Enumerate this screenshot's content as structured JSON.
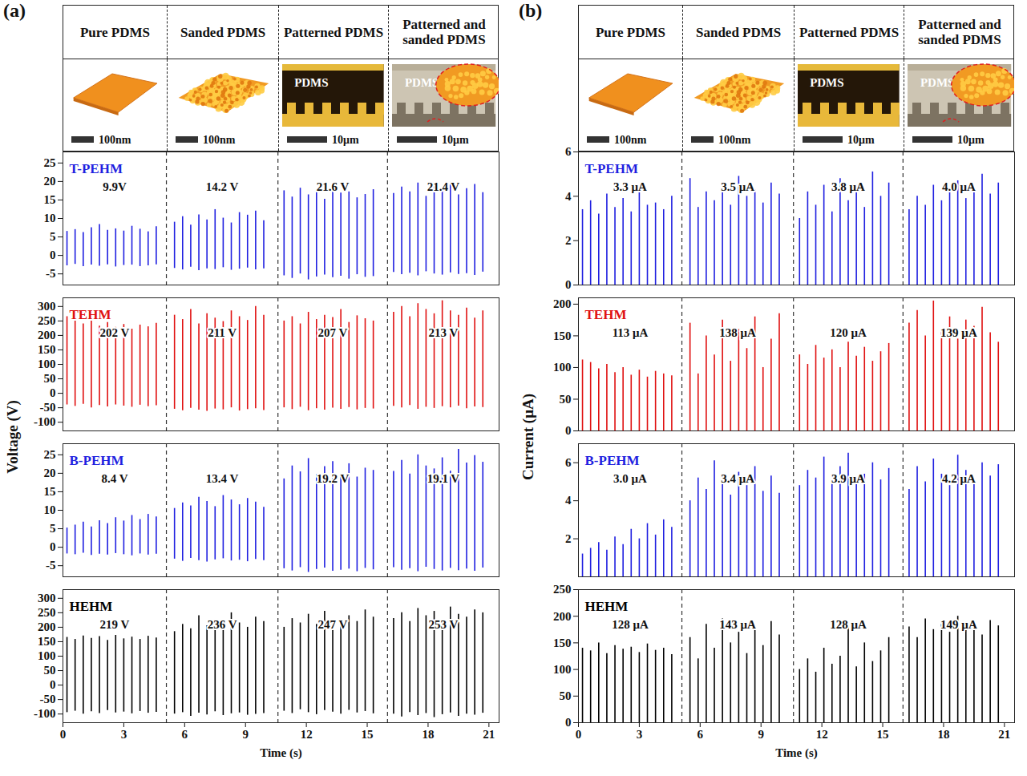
{
  "chart_data": [
    {
      "type": "spikes",
      "panel": "(a)",
      "columns": [
        "Pure PDMS",
        "Sanded PDMS",
        "Patterned PDMS",
        "Patterned and sanded PDMS"
      ],
      "insets": [
        {
          "type": "afm_flat",
          "scale": "100nm"
        },
        {
          "type": "afm_rough",
          "scale": "100nm"
        },
        {
          "type": "sem",
          "label": "PDMS",
          "scale": "10μm"
        },
        {
          "type": "sem_rough",
          "label": "PDMS",
          "scale": "10μm"
        }
      ],
      "ylabel": "Voltage (V)",
      "xlabel": "Time (s)",
      "xlim": [
        0,
        21.5
      ],
      "xticks": [
        0,
        3,
        6,
        9,
        12,
        15,
        18,
        21
      ],
      "dividers": [
        5.1,
        10.6,
        16.0
      ],
      "x": [
        0.2,
        0.6,
        1.0,
        1.4,
        1.8,
        2.2,
        2.6,
        3.0,
        3.4,
        3.8,
        4.2,
        4.6,
        5.5,
        5.9,
        6.3,
        6.7,
        7.1,
        7.5,
        7.9,
        8.3,
        8.7,
        9.1,
        9.5,
        9.9,
        10.9,
        11.3,
        11.7,
        12.1,
        12.5,
        12.9,
        13.3,
        13.7,
        14.1,
        14.5,
        14.9,
        15.3,
        16.3,
        16.7,
        17.1,
        17.5,
        17.9,
        18.3,
        18.7,
        19.1,
        19.5,
        19.9,
        20.3,
        20.7
      ],
      "rows": [
        {
          "name": "T-PEHM",
          "color": "#1f1fe0",
          "ylim": [
            -8,
            28
          ],
          "yticks": [
            -5,
            0,
            5,
            10,
            15,
            20,
            25
          ],
          "values": [
            6.5,
            7.0,
            6.2,
            7.5,
            8.4,
            6.8,
            7.2,
            6.6,
            7.9,
            7.1,
            6.4,
            7.8,
            9.0,
            10.5,
            8.2,
            11.0,
            9.6,
            12.4,
            10.1,
            8.8,
            11.6,
            10.9,
            12.0,
            9.4,
            17.5,
            15.8,
            18.2,
            16.4,
            17.9,
            15.2,
            18.6,
            16.9,
            17.2,
            15.6,
            16.5,
            17.8,
            16.8,
            18.5,
            17.2,
            19.6,
            16.0,
            18.9,
            17.5,
            19.8,
            16.4,
            18.1,
            19.2,
            17.0
          ],
          "lows": [
            -2.8,
            -2.4,
            -3.0,
            -2.6,
            -2.9,
            -2.5,
            -3.1,
            -2.7,
            -2.6,
            -3.0,
            -2.8,
            -2.5,
            -3.5,
            -3.9,
            -3.2,
            -4.1,
            -3.6,
            -3.8,
            -3.3,
            -4.0,
            -3.7,
            -3.4,
            -3.9,
            -3.6,
            -5.5,
            -6.2,
            -5.0,
            -6.6,
            -5.8,
            -5.3,
            -6.0,
            -5.6,
            -6.4,
            -5.2,
            -5.9,
            -5.7,
            -4.6,
            -5.2,
            -4.8,
            -5.5,
            -4.4,
            -5.0,
            -5.3,
            -4.7,
            -5.1,
            -4.9,
            -5.4,
            -4.5
          ],
          "annotations": [
            "9.9V",
            "14.2 V",
            "21.6 V",
            "21.4 V"
          ]
        },
        {
          "name": "TEHM",
          "color": "#e01010",
          "ylim": [
            -130,
            330
          ],
          "yticks": [
            -100,
            -50,
            0,
            50,
            100,
            150,
            200,
            250,
            300
          ],
          "values": [
            265,
            250,
            240,
            258,
            232,
            245,
            228,
            238,
            222,
            236,
            230,
            242,
            270,
            255,
            290,
            240,
            275,
            260,
            248,
            285,
            265,
            252,
            300,
            270,
            250,
            265,
            240,
            280,
            255,
            270,
            262,
            290,
            245,
            268,
            258,
            250,
            280,
            300,
            265,
            310,
            290,
            275,
            320,
            285,
            270,
            295,
            260,
            285
          ],
          "lows": [
            -40,
            -45,
            -38,
            -50,
            -42,
            -47,
            -40,
            -44,
            -48,
            -41,
            -46,
            -43,
            -55,
            -60,
            -52,
            -58,
            -62,
            -54,
            -57,
            -50,
            -61,
            -56,
            -53,
            -59,
            -50,
            -56,
            -48,
            -60,
            -53,
            -58,
            -51,
            -55,
            -49,
            -57,
            -52,
            -54,
            -45,
            -50,
            -42,
            -55,
            -48,
            -52,
            -46,
            -50,
            -44,
            -53,
            -47,
            -49
          ],
          "annotations": [
            "202 V",
            "211 V",
            "207 V",
            "213 V"
          ]
        },
        {
          "name": "B-PEHM",
          "color": "#1f1fe0",
          "ylim": [
            -8,
            28
          ],
          "yticks": [
            -5,
            0,
            5,
            10,
            15,
            20,
            25
          ],
          "values": [
            5.2,
            6.0,
            6.8,
            5.5,
            7.2,
            6.4,
            8.0,
            7.1,
            8.6,
            7.5,
            8.9,
            8.2,
            10.5,
            12.0,
            11.2,
            13.5,
            12.4,
            11.0,
            14.0,
            12.8,
            11.5,
            13.2,
            12.2,
            10.8,
            18.5,
            22.0,
            20.4,
            24.0,
            19.6,
            21.8,
            23.2,
            20.0,
            22.6,
            19.0,
            21.4,
            20.8,
            20.5,
            23.5,
            19.8,
            25.0,
            22.0,
            21.2,
            24.2,
            20.6,
            26.5,
            22.8,
            24.8,
            23.0
          ],
          "lows": [
            -1.8,
            -2.0,
            -1.6,
            -2.2,
            -1.9,
            -2.1,
            -1.7,
            -2.0,
            -2.3,
            -1.8,
            -2.1,
            -1.9,
            -3.2,
            -3.8,
            -3.0,
            -3.6,
            -4.0,
            -3.4,
            -3.1,
            -3.7,
            -3.5,
            -3.9,
            -3.3,
            -3.6,
            -5.8,
            -6.4,
            -5.5,
            -6.8,
            -6.0,
            -5.6,
            -6.5,
            -6.2,
            -5.9,
            -6.6,
            -5.7,
            -6.1,
            -5.5,
            -6.2,
            -5.8,
            -6.6,
            -5.4,
            -6.0,
            -6.4,
            -5.7,
            -6.3,
            -5.9,
            -6.5,
            -5.6
          ],
          "annotations": [
            "8.4 V",
            "13.4 V",
            "19.2 V",
            "19.1 V"
          ]
        },
        {
          "name": "HEHM",
          "color": "#000000",
          "ylim": [
            -130,
            330
          ],
          "yticks": [
            -100,
            -50,
            0,
            50,
            100,
            150,
            200,
            250,
            300
          ],
          "values": [
            165,
            158,
            170,
            162,
            168,
            155,
            172,
            160,
            166,
            158,
            169,
            163,
            185,
            210,
            195,
            240,
            205,
            225,
            190,
            250,
            215,
            200,
            235,
            220,
            200,
            230,
            215,
            245,
            210,
            255,
            225,
            205,
            240,
            220,
            260,
            235,
            230,
            250,
            220,
            265,
            240,
            255,
            225,
            270,
            245,
            235,
            260,
            250
          ],
          "lows": [
            -95,
            -90,
            -100,
            -92,
            -98,
            -88,
            -96,
            -93,
            -99,
            -91,
            -97,
            -94,
            -100,
            -95,
            -108,
            -97,
            -103,
            -92,
            -105,
            -99,
            -96,
            -104,
            -101,
            -98,
            -90,
            -98,
            -85,
            -95,
            -102,
            -88,
            -93,
            -100,
            -87,
            -96,
            -91,
            -99,
            -100,
            -110,
            -95,
            -105,
            -98,
            -112,
            -102,
            -96,
            -108,
            -100,
            -104,
            -97
          ],
          "annotations": [
            "219 V",
            "236 V",
            "247 V",
            "253 V"
          ]
        }
      ]
    },
    {
      "type": "spikes",
      "panel": "(b)",
      "columns": [
        "Pure PDMS",
        "Sanded PDMS",
        "Patterned PDMS",
        "Patterned and sanded PDMS"
      ],
      "insets": [
        {
          "type": "afm_flat",
          "scale": "100nm"
        },
        {
          "type": "afm_rough",
          "scale": "100nm"
        },
        {
          "type": "sem",
          "label": "PDMS",
          "scale": "10μm"
        },
        {
          "type": "sem_rough",
          "label": "PDMS",
          "scale": "10μm"
        }
      ],
      "ylabel": "Current (μA)",
      "xlabel": "Time (s)",
      "xlim": [
        0,
        21.5
      ],
      "xticks": [
        0,
        3,
        6,
        9,
        12,
        15,
        18,
        21
      ],
      "dividers": [
        5.1,
        10.6,
        16.0
      ],
      "x": [
        0.2,
        0.6,
        1.0,
        1.4,
        1.8,
        2.2,
        2.6,
        3.0,
        3.4,
        3.8,
        4.2,
        4.6,
        5.5,
        5.9,
        6.3,
        6.7,
        7.1,
        7.5,
        7.9,
        8.3,
        8.7,
        9.1,
        9.5,
        9.9,
        10.9,
        11.3,
        11.7,
        12.1,
        12.5,
        12.9,
        13.3,
        13.7,
        14.1,
        14.5,
        14.9,
        15.3,
        16.3,
        16.7,
        17.1,
        17.5,
        17.9,
        18.3,
        18.7,
        19.1,
        19.5,
        19.9,
        20.3,
        20.7
      ],
      "rows": [
        {
          "name": "T-PEHM",
          "color": "#1f1fe0",
          "ylim": [
            0,
            6
          ],
          "yticks": [
            0,
            2,
            4,
            6
          ],
          "values": [
            3.4,
            3.8,
            3.2,
            4.1,
            3.5,
            3.9,
            3.3,
            4.2,
            3.6,
            3.7,
            3.4,
            4.0,
            4.8,
            3.5,
            4.2,
            3.8,
            4.5,
            3.6,
            4.9,
            4.0,
            4.3,
            3.7,
            4.6,
            4.1,
            3.0,
            4.2,
            3.6,
            4.5,
            3.3,
            4.8,
            3.8,
            4.4,
            3.5,
            5.1,
            4.0,
            4.6,
            3.4,
            4.0,
            3.6,
            4.5,
            3.8,
            4.2,
            4.7,
            3.9,
            4.4,
            5.0,
            4.1,
            4.6
          ],
          "annotations": [
            "3.3 μA",
            "3.5 μA",
            "3.8 μA",
            "4.0 μA"
          ]
        },
        {
          "name": "TEHM",
          "color": "#e01010",
          "ylim": [
            0,
            210
          ],
          "yticks": [
            0,
            50,
            100,
            150,
            200
          ],
          "values": [
            112,
            108,
            98,
            105,
            92,
            100,
            88,
            96,
            85,
            94,
            90,
            87,
            170,
            90,
            150,
            120,
            175,
            110,
            160,
            130,
            180,
            100,
            145,
            185,
            120,
            105,
            135,
            115,
            128,
            100,
            140,
            118,
            132,
            110,
            125,
            138,
            170,
            190,
            150,
            205,
            160,
            180,
            145,
            175,
            165,
            195,
            155,
            140
          ],
          "annotations": [
            "113 μA",
            "138 μA",
            "120 μA",
            "139 μA"
          ]
        },
        {
          "name": "B-PEHM",
          "color": "#1f1fe0",
          "ylim": [
            0,
            7
          ],
          "yticks": [
            2,
            4,
            6
          ],
          "values": [
            1.2,
            1.5,
            1.8,
            1.4,
            2.1,
            1.7,
            2.5,
            2.0,
            2.8,
            2.2,
            3.0,
            2.6,
            4.0,
            5.2,
            4.6,
            6.1,
            5.0,
            4.3,
            5.5,
            4.8,
            5.8,
            4.5,
            5.3,
            4.4,
            4.8,
            5.6,
            5.2,
            6.3,
            4.9,
            5.8,
            6.5,
            5.0,
            5.4,
            6.0,
            5.1,
            5.7,
            4.6,
            5.8,
            5.0,
            6.2,
            5.4,
            4.8,
            6.4,
            5.6,
            5.1,
            6.0,
            5.3,
            5.9
          ],
          "annotations": [
            "3.0 μA",
            "3.4 μA",
            "3.9 μA",
            "4.2 μA"
          ]
        },
        {
          "name": "HEHM",
          "color": "#000000",
          "ylim": [
            0,
            250
          ],
          "yticks": [
            0,
            50,
            100,
            150,
            200,
            250
          ],
          "values": [
            140,
            135,
            150,
            130,
            145,
            138,
            142,
            132,
            148,
            136,
            140,
            128,
            160,
            120,
            185,
            140,
            195,
            150,
            170,
            130,
            180,
            145,
            190,
            165,
            100,
            120,
            95,
            140,
            110,
            125,
            180,
            105,
            150,
            115,
            135,
            160,
            180,
            160,
            195,
            175,
            185,
            170,
            200,
            178,
            188,
            165,
            192,
            182
          ],
          "annotations": [
            "128 μA",
            "143 μA",
            "128 μA",
            "149 μA"
          ]
        }
      ]
    }
  ]
}
